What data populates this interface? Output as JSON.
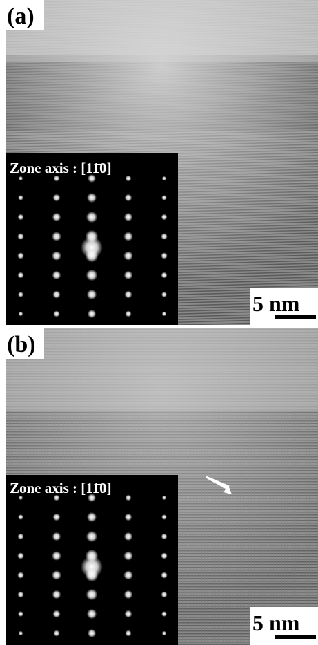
{
  "panels": [
    {
      "label": "(a)",
      "inset_title": "Zone axis : [11̄0]",
      "scale_bar": "5 nm"
    },
    {
      "label": "(b)",
      "inset_title": "Zone axis : [11̄0]",
      "scale_bar": "5 nm"
    }
  ]
}
